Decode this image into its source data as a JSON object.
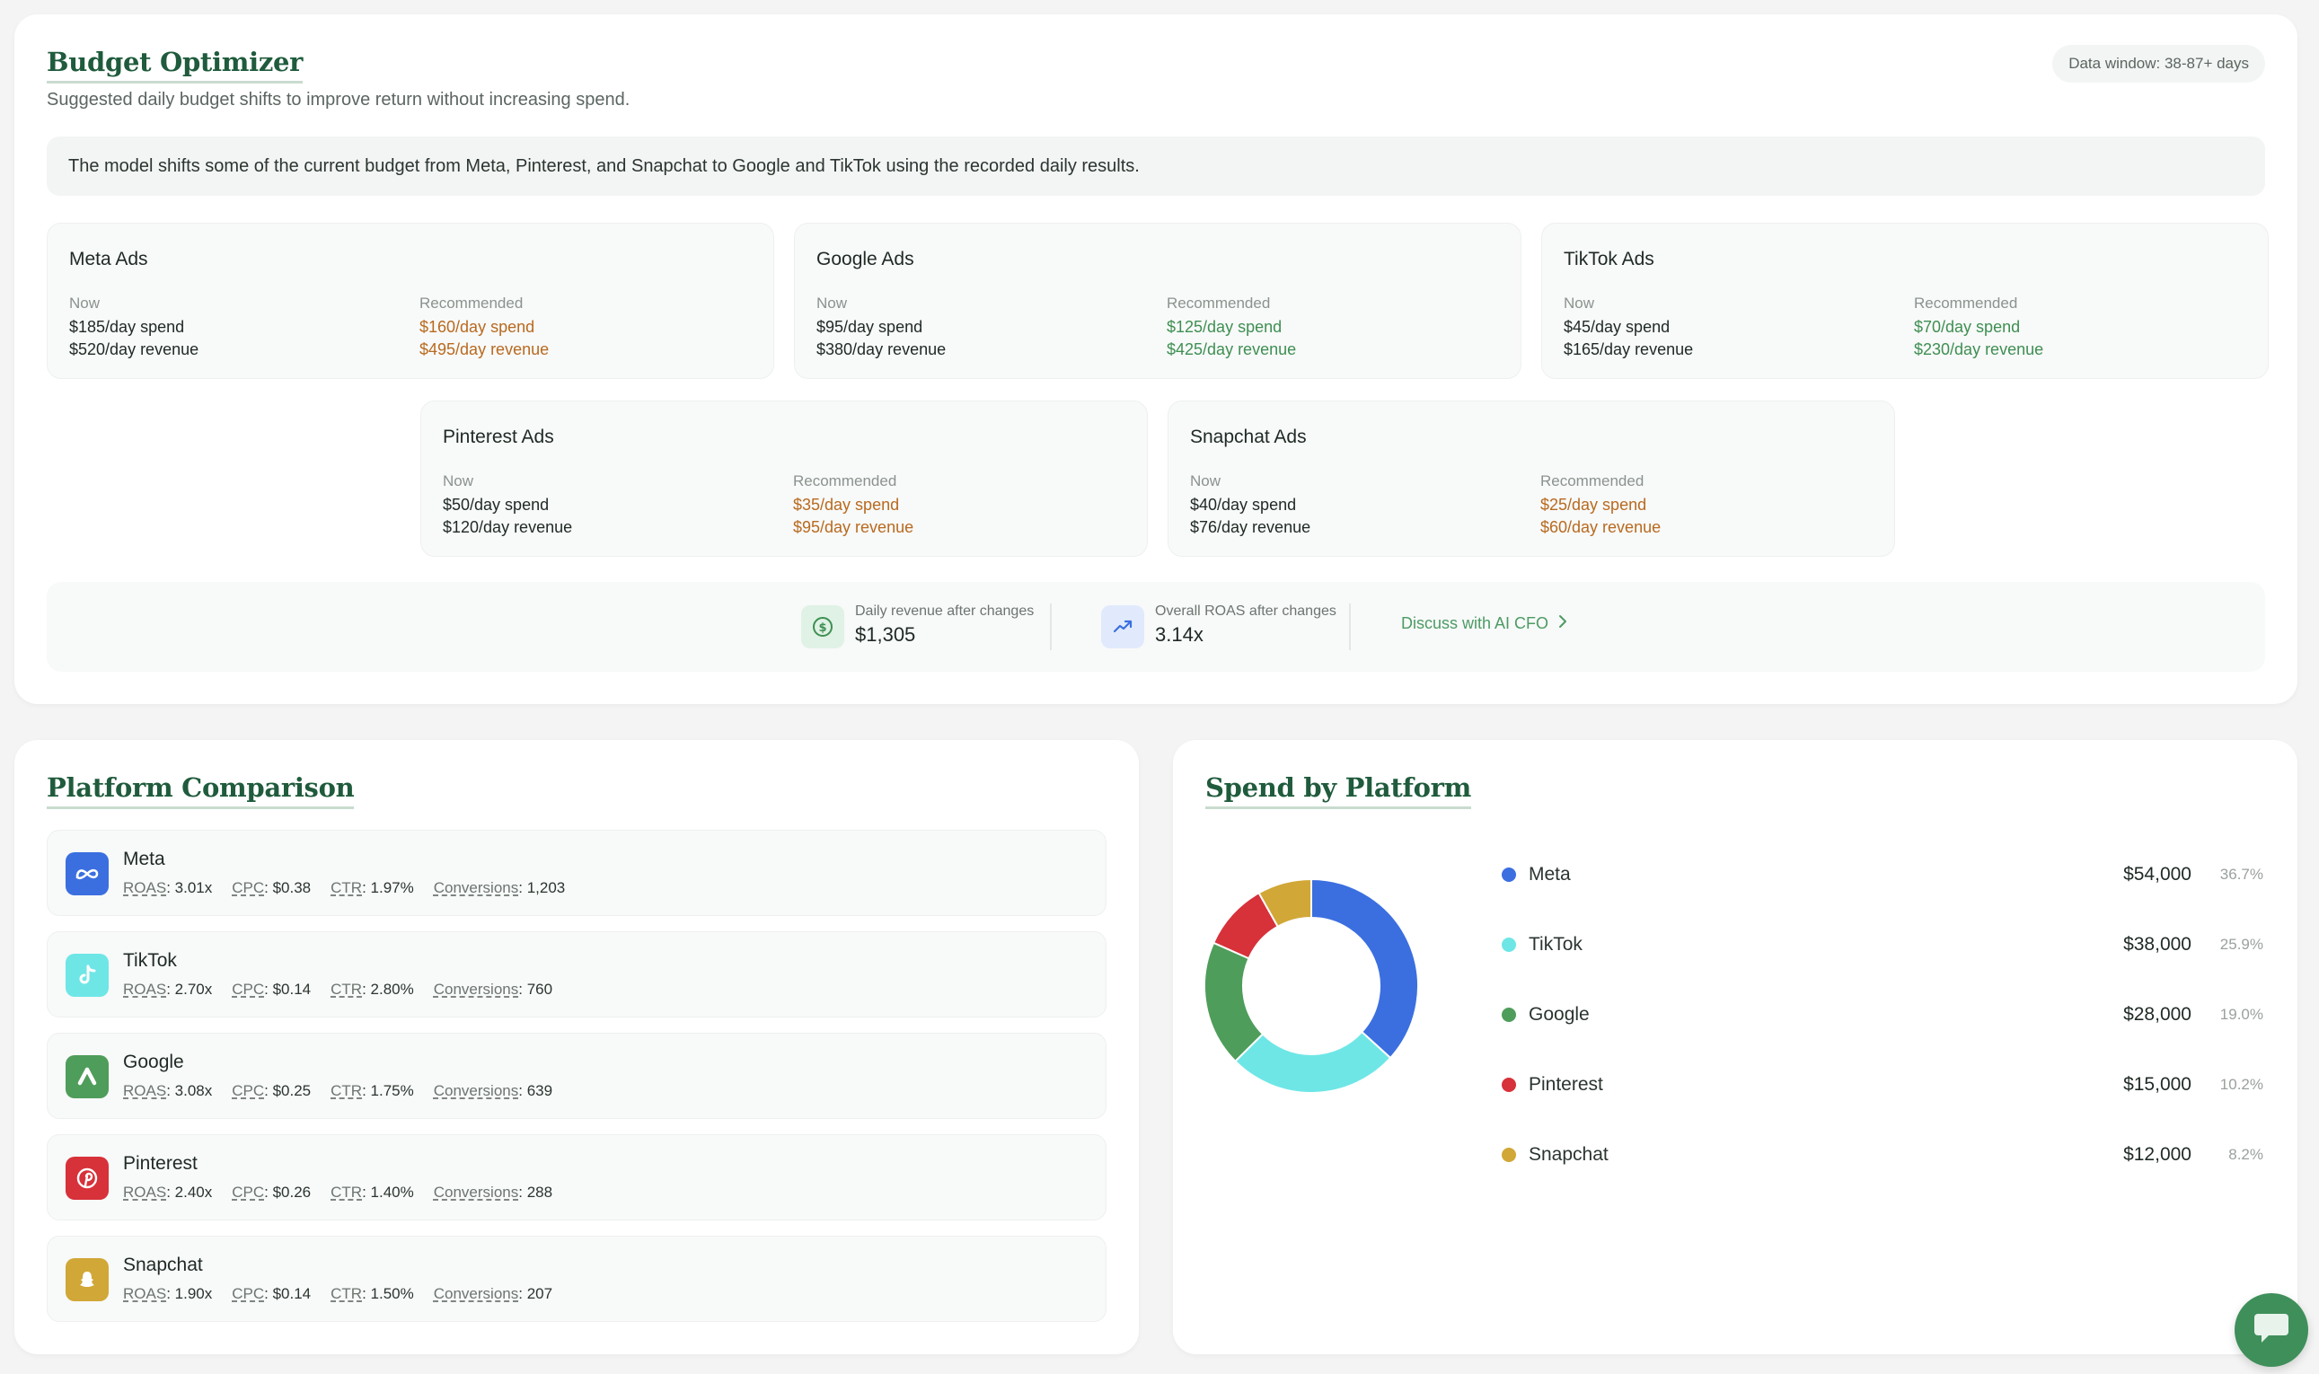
{
  "budget": {
    "title": "Budget Optimizer",
    "subtitle": "Suggested daily budget shifts to improve return without increasing spend.",
    "data_window": "Data window: 38-87+ days",
    "info": "The model shifts some of the current budget from Meta, Pinterest, and Snapchat to Google and TikTok using the recorded daily results.",
    "now_label": "Now",
    "rec_label": "Recommended",
    "cards": [
      {
        "name": "Meta Ads",
        "now_spend": "$185/day spend",
        "now_revenue": "$520/day revenue",
        "rec_spend": "$160/day spend",
        "rec_revenue": "$495/day revenue",
        "direction": "down"
      },
      {
        "name": "Google Ads",
        "now_spend": "$95/day spend",
        "now_revenue": "$380/day revenue",
        "rec_spend": "$125/day spend",
        "rec_revenue": "$425/day revenue",
        "direction": "up"
      },
      {
        "name": "TikTok Ads",
        "now_spend": "$45/day spend",
        "now_revenue": "$165/day revenue",
        "rec_spend": "$70/day spend",
        "rec_revenue": "$230/day revenue",
        "direction": "up"
      },
      {
        "name": "Pinterest Ads",
        "now_spend": "$50/day spend",
        "now_revenue": "$120/day revenue",
        "rec_spend": "$35/day spend",
        "rec_revenue": "$95/day revenue",
        "direction": "down"
      },
      {
        "name": "Snapchat Ads",
        "now_spend": "$40/day spend",
        "now_revenue": "$76/day revenue",
        "rec_spend": "$25/day spend",
        "rec_revenue": "$60/day revenue",
        "direction": "down"
      }
    ],
    "totals": {
      "revenue_label": "Daily revenue after changes",
      "revenue_value": "$1,305",
      "roas_label": "Overall ROAS after changes",
      "roas_value": "3.14x",
      "discuss_label": "Discuss with AI CFO"
    },
    "colors": {
      "up": "#3e8f52",
      "down": "#b86a1f"
    }
  },
  "comparison": {
    "title": "Platform Comparison",
    "keys": {
      "roas": "ROAS",
      "cpc": "CPC",
      "ctr": "CTR",
      "conversions": "Conversions"
    },
    "platforms": [
      {
        "name": "Meta",
        "icon": "meta-icon",
        "color": "#3b6fe0",
        "roas": "3.01x",
        "cpc": "$0.38",
        "ctr": "1.97%",
        "conversions": "1,203"
      },
      {
        "name": "TikTok",
        "icon": "tiktok-icon",
        "color": "#6ee6e6",
        "roas": "2.70x",
        "cpc": "$0.14",
        "ctr": "2.80%",
        "conversions": "760"
      },
      {
        "name": "Google",
        "icon": "google-ads-icon",
        "color": "#4f9d5a",
        "roas": "3.08x",
        "cpc": "$0.25",
        "ctr": "1.75%",
        "conversions": "639"
      },
      {
        "name": "Pinterest",
        "icon": "pinterest-icon",
        "color": "#d7313a",
        "roas": "2.40x",
        "cpc": "$0.26",
        "ctr": "1.40%",
        "conversions": "288"
      },
      {
        "name": "Snapchat",
        "icon": "snapchat-icon",
        "color": "#d1a737",
        "roas": "1.90x",
        "cpc": "$0.14",
        "ctr": "1.50%",
        "conversions": "207"
      }
    ]
  },
  "spend": {
    "title": "Spend by Platform",
    "chart_data": {
      "type": "pie",
      "categories": [
        "Meta",
        "TikTok",
        "Google",
        "Pinterest",
        "Snapchat"
      ],
      "values": [
        54000,
        38000,
        28000,
        15000,
        12000
      ],
      "colors": [
        "#3b6fe0",
        "#6ee6e6",
        "#4f9d5a",
        "#d7313a",
        "#d1a737"
      ],
      "amount_labels": [
        "$54,000",
        "$38,000",
        "$28,000",
        "$15,000",
        "$12,000"
      ],
      "percent_labels": [
        "36.7%",
        "25.9%",
        "19.0%",
        "10.2%",
        "8.2%"
      ],
      "donut": true,
      "legend_position": "right"
    }
  }
}
